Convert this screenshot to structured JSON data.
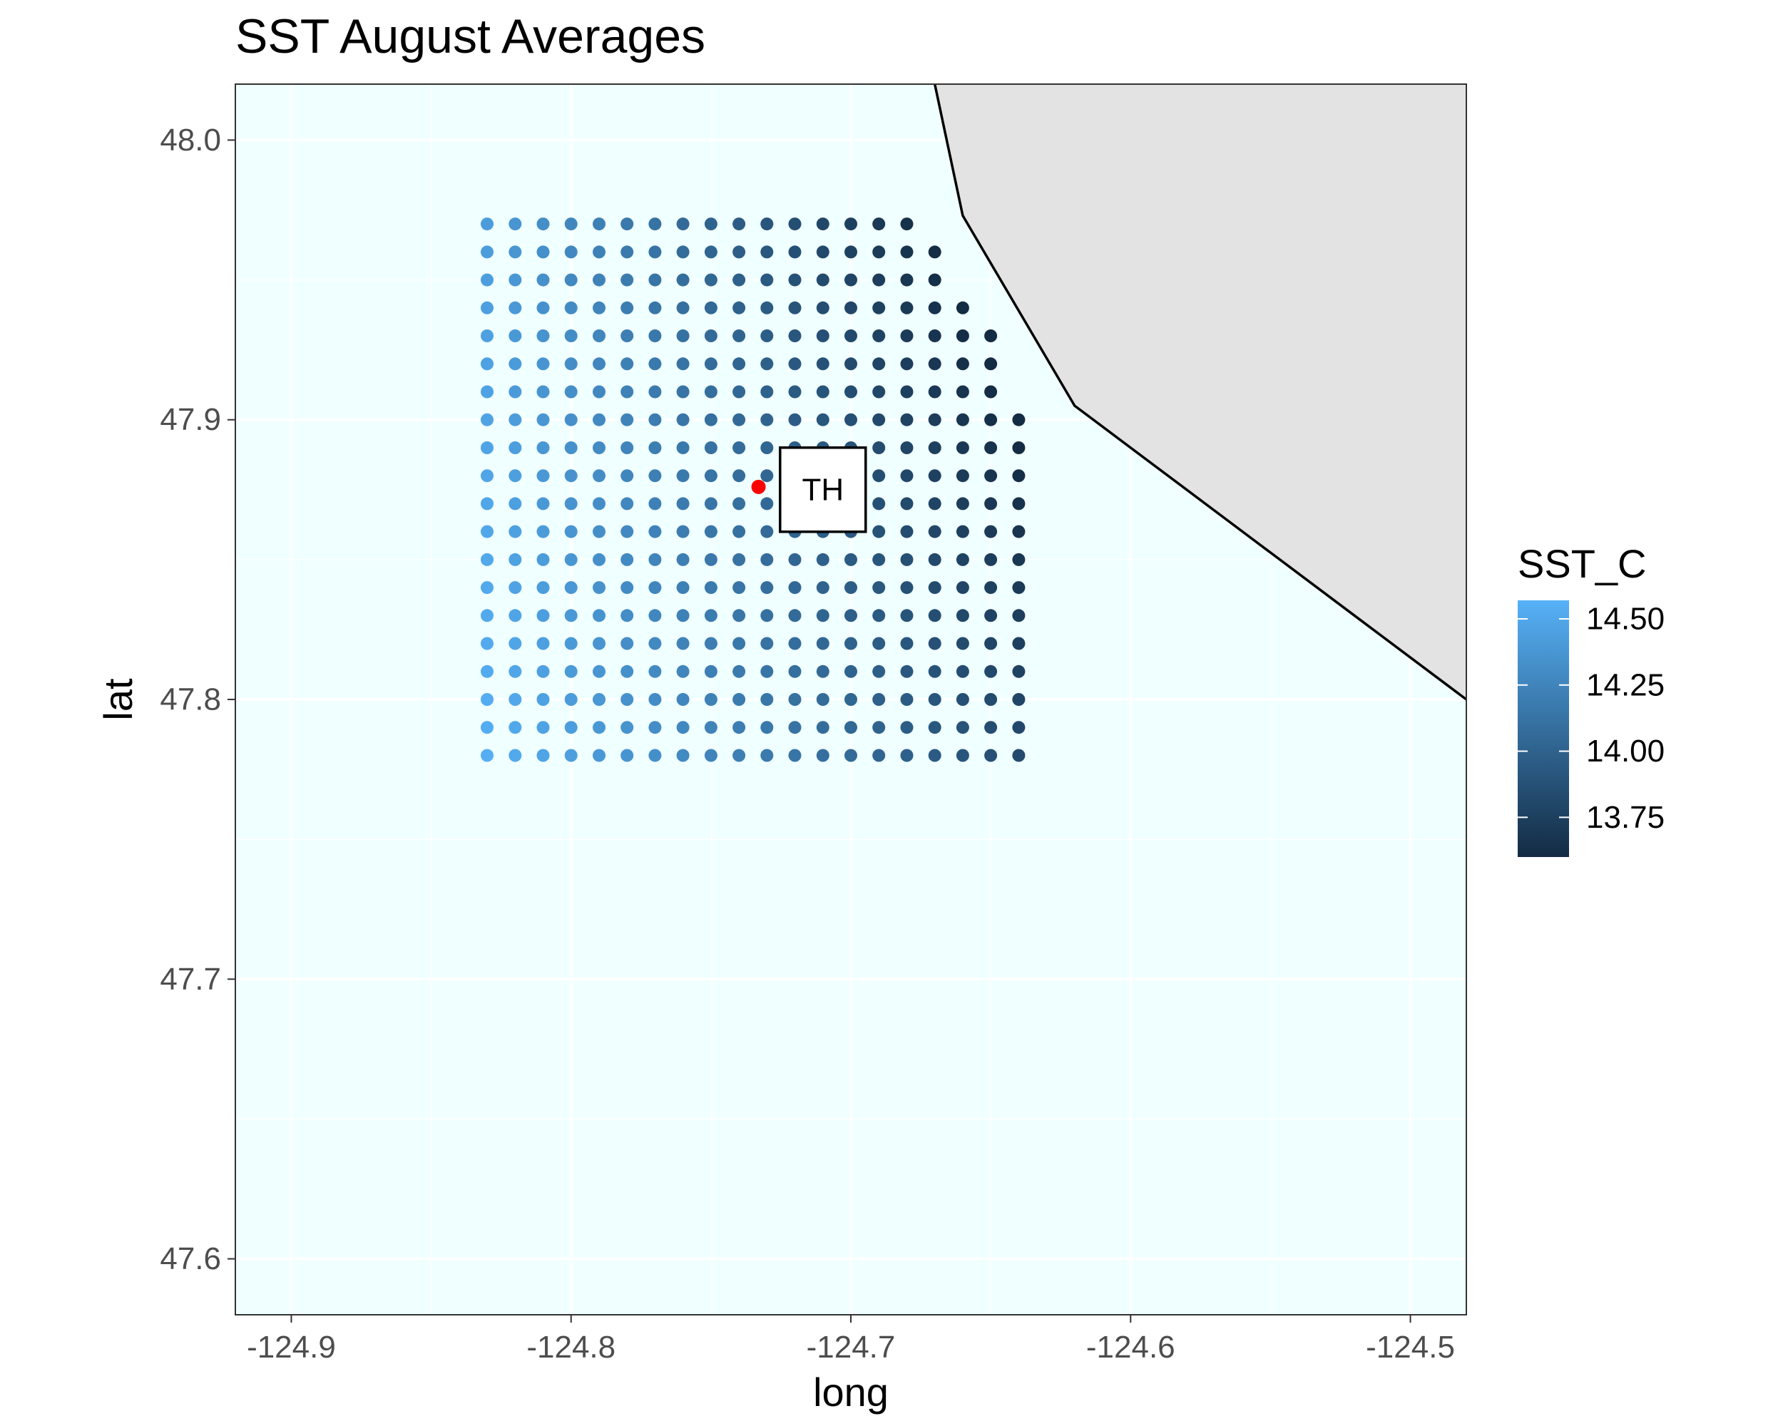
{
  "chart_data": {
    "type": "scatter",
    "title": "SST August Averages",
    "xlabel": "long",
    "ylabel": "lat",
    "xlim": [
      -124.92,
      -124.48
    ],
    "ylim": [
      47.58,
      48.02
    ],
    "x_ticks": [
      -124.9,
      -124.8,
      -124.7,
      -124.6,
      -124.5
    ],
    "x_tick_labels": [
      "-124.9",
      "-124.8",
      "-124.7",
      "-124.6",
      "-124.5"
    ],
    "y_ticks": [
      47.6,
      47.7,
      47.8,
      47.9,
      48.0
    ],
    "y_tick_labels": [
      "47.6",
      "47.7",
      "47.8",
      "47.9",
      "48.0"
    ],
    "grid": true,
    "background_color": "#f0ffff",
    "land": {
      "fill": "#e3e3e3",
      "outline": [
        [
          -124.67,
          48.02
        ],
        [
          -124.66,
          47.973
        ],
        [
          -124.62,
          47.905
        ],
        [
          -124.48,
          47.8
        ]
      ]
    },
    "grid_points": {
      "lon_start": -124.83,
      "lon_step": 0.01,
      "lat_start": 47.78,
      "lat_step": 0.01,
      "rows_bottom_to_top": [
        {
          "lat": 47.78,
          "n": 20
        },
        {
          "lat": 47.79,
          "n": 20
        },
        {
          "lat": 47.8,
          "n": 20
        },
        {
          "lat": 47.81,
          "n": 20
        },
        {
          "lat": 47.82,
          "n": 20
        },
        {
          "lat": 47.83,
          "n": 20
        },
        {
          "lat": 47.84,
          "n": 20
        },
        {
          "lat": 47.85,
          "n": 20
        },
        {
          "lat": 47.86,
          "n": 20
        },
        {
          "lat": 47.87,
          "n": 20
        },
        {
          "lat": 47.88,
          "n": 20
        },
        {
          "lat": 47.89,
          "n": 20
        },
        {
          "lat": 47.9,
          "n": 20
        },
        {
          "lat": 47.91,
          "n": 19
        },
        {
          "lat": 47.92,
          "n": 19
        },
        {
          "lat": 47.93,
          "n": 19
        },
        {
          "lat": 47.94,
          "n": 18
        },
        {
          "lat": 47.95,
          "n": 17
        },
        {
          "lat": 47.96,
          "n": 17
        },
        {
          "lat": 47.97,
          "n": 16
        }
      ],
      "sst_range": [
        13.6,
        14.55
      ]
    },
    "marker": {
      "lon": -124.733,
      "lat": 47.876,
      "color": "#ff0000"
    },
    "annotation": {
      "text": "TH",
      "lon": -124.71,
      "lat": 47.875
    },
    "legend": {
      "title": "SST_C",
      "position": "right",
      "breaks": [
        14.5,
        14.25,
        14.0,
        13.75
      ],
      "labels": [
        "14.50",
        "14.25",
        "14.00",
        "13.75"
      ],
      "range": [
        13.6,
        14.57
      ],
      "color_low": "#132b43",
      "color_high": "#56b1f7"
    }
  }
}
